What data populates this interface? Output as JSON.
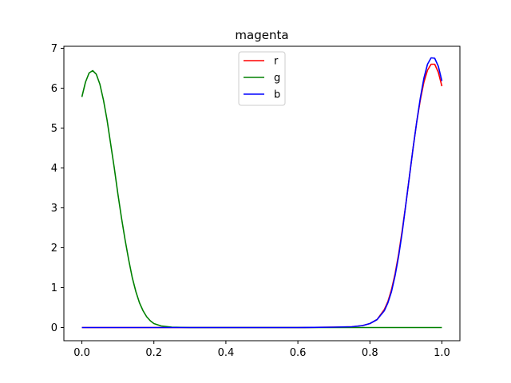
{
  "chart_data": {
    "type": "line",
    "title": "magenta",
    "xlabel": "",
    "ylabel": "",
    "xlim": [
      -0.05,
      1.05
    ],
    "ylim": [
      -0.33,
      7.05
    ],
    "x_ticks": [
      0.0,
      0.2,
      0.4,
      0.6,
      0.8,
      1.0
    ],
    "x_tick_labels": [
      "0.0",
      "0.2",
      "0.4",
      "0.6",
      "0.8",
      "1.0"
    ],
    "y_ticks": [
      0,
      1,
      2,
      3,
      4,
      5,
      6,
      7
    ],
    "y_tick_labels": [
      "0",
      "1",
      "2",
      "3",
      "4",
      "5",
      "6",
      "7"
    ],
    "grid": false,
    "legend_position": "top-center",
    "x": [
      0.0,
      0.01,
      0.02,
      0.03,
      0.04,
      0.05,
      0.06,
      0.07,
      0.08,
      0.09,
      0.1,
      0.11,
      0.12,
      0.13,
      0.14,
      0.15,
      0.16,
      0.17,
      0.18,
      0.19,
      0.2,
      0.22,
      0.25,
      0.3,
      0.4,
      0.5,
      0.6,
      0.7,
      0.75,
      0.78,
      0.8,
      0.82,
      0.84,
      0.85,
      0.86,
      0.87,
      0.88,
      0.89,
      0.9,
      0.91,
      0.92,
      0.93,
      0.94,
      0.95,
      0.96,
      0.97,
      0.98,
      0.99,
      1.0
    ],
    "series": [
      {
        "name": "r",
        "color": "#ff0000",
        "values": [
          0,
          0,
          0,
          0,
          0,
          0,
          0,
          0,
          0,
          0,
          0,
          0,
          0,
          0,
          0,
          0,
          0,
          0,
          0,
          0,
          0,
          0,
          0,
          0,
          0,
          0,
          0,
          0.01,
          0.02,
          0.05,
          0.1,
          0.2,
          0.45,
          0.65,
          0.95,
          1.35,
          1.85,
          2.45,
          3.1,
          3.8,
          4.5,
          5.15,
          5.7,
          6.15,
          6.45,
          6.6,
          6.6,
          6.4,
          6.05
        ]
      },
      {
        "name": "g",
        "color": "#008000",
        "values": [
          5.78,
          6.15,
          6.38,
          6.44,
          6.35,
          6.1,
          5.7,
          5.2,
          4.6,
          4.0,
          3.35,
          2.75,
          2.2,
          1.7,
          1.25,
          0.9,
          0.62,
          0.42,
          0.27,
          0.17,
          0.1,
          0.04,
          0.01,
          0,
          0,
          0,
          0,
          0,
          0,
          0,
          0,
          0,
          0,
          0,
          0,
          0,
          0,
          0,
          0,
          0,
          0,
          0,
          0,
          0,
          0,
          0,
          0,
          0,
          0
        ]
      },
      {
        "name": "b",
        "color": "#0000ff",
        "values": [
          0,
          0,
          0,
          0,
          0,
          0,
          0,
          0,
          0,
          0,
          0,
          0,
          0,
          0,
          0,
          0,
          0,
          0,
          0,
          0,
          0,
          0,
          0,
          0,
          0,
          0,
          0,
          0.01,
          0.02,
          0.05,
          0.1,
          0.2,
          0.42,
          0.62,
          0.9,
          1.3,
          1.8,
          2.4,
          3.1,
          3.8,
          4.5,
          5.15,
          5.75,
          6.25,
          6.6,
          6.76,
          6.75,
          6.55,
          6.18
        ]
      }
    ]
  }
}
